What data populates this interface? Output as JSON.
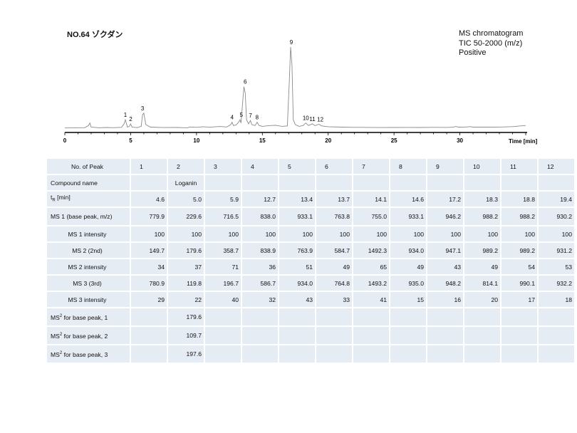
{
  "header": {
    "title": "NO.64 ゾクダン",
    "info": [
      "MS chromatogram",
      "TIC 50-2000 (m/z)",
      "Positive"
    ]
  },
  "chart_data": {
    "type": "line",
    "title": "NO.64 ゾクダン",
    "xlabel": "Time [min]",
    "ylabel": "",
    "xlim": [
      0,
      35
    ],
    "x_ticks": [
      0,
      5,
      10,
      15,
      20,
      25,
      30
    ],
    "grid": false,
    "baseline": 2,
    "points": [
      [
        0,
        2
      ],
      [
        1.5,
        2.2
      ],
      [
        1.8,
        5
      ],
      [
        1.9,
        8
      ],
      [
        2.0,
        3
      ],
      [
        2.6,
        2.2
      ],
      [
        3.2,
        2.6
      ],
      [
        3.6,
        2.3
      ],
      [
        4.3,
        2.8
      ],
      [
        4.5,
        7
      ],
      [
        4.6,
        12
      ],
      [
        4.75,
        3
      ],
      [
        4.9,
        4
      ],
      [
        5.0,
        7
      ],
      [
        5.1,
        3
      ],
      [
        5.5,
        2.4
      ],
      [
        5.8,
        4
      ],
      [
        5.9,
        18
      ],
      [
        6.0,
        20
      ],
      [
        6.15,
        6
      ],
      [
        6.5,
        3
      ],
      [
        7.5,
        2.5
      ],
      [
        8.5,
        2.6
      ],
      [
        9.3,
        2.2
      ],
      [
        9.5,
        3.2
      ],
      [
        10.0,
        2.8
      ],
      [
        10.5,
        3.5
      ],
      [
        11.0,
        2.9
      ],
      [
        11.8,
        3.8
      ],
      [
        12.3,
        3.2
      ],
      [
        12.6,
        6
      ],
      [
        12.7,
        9
      ],
      [
        12.8,
        5
      ],
      [
        13.0,
        5.5
      ],
      [
        13.2,
        9
      ],
      [
        13.3,
        12
      ],
      [
        13.38,
        8
      ],
      [
        13.5,
        32
      ],
      [
        13.6,
        52
      ],
      [
        13.7,
        44
      ],
      [
        13.8,
        12
      ],
      [
        13.95,
        7
      ],
      [
        14.1,
        11
      ],
      [
        14.2,
        6
      ],
      [
        14.45,
        5
      ],
      [
        14.6,
        9
      ],
      [
        14.75,
        5
      ],
      [
        15.0,
        4
      ],
      [
        15.5,
        4.8
      ],
      [
        16.0,
        5.3
      ],
      [
        16.5,
        4
      ],
      [
        16.9,
        4.5
      ],
      [
        17.05,
        60
      ],
      [
        17.15,
        100
      ],
      [
        17.25,
        78
      ],
      [
        17.35,
        12
      ],
      [
        17.5,
        6
      ],
      [
        17.8,
        4
      ],
      [
        18.1,
        5
      ],
      [
        18.3,
        8
      ],
      [
        18.5,
        5
      ],
      [
        18.8,
        7
      ],
      [
        19.0,
        4.8
      ],
      [
        19.3,
        6.5
      ],
      [
        19.5,
        4.5
      ],
      [
        20.0,
        3.5
      ],
      [
        21.0,
        3
      ],
      [
        22.0,
        2.8
      ],
      [
        23.0,
        2.7
      ],
      [
        24.0,
        2.5
      ],
      [
        25.0,
        2.6
      ],
      [
        26.0,
        2.7
      ],
      [
        27.0,
        2.6
      ],
      [
        28.0,
        2.8
      ],
      [
        29.0,
        2.7
      ],
      [
        29.5,
        2.9
      ],
      [
        29.7,
        3.8
      ],
      [
        29.9,
        3
      ],
      [
        30.3,
        2.9
      ],
      [
        30.8,
        3.6
      ],
      [
        31.0,
        3
      ],
      [
        32.0,
        3
      ],
      [
        33.0,
        3.1
      ],
      [
        34.0,
        3.6
      ],
      [
        35.0,
        5
      ]
    ],
    "peaks": [
      {
        "label": "1",
        "x": 4.6,
        "y": 12
      },
      {
        "label": "2",
        "x": 5.0,
        "y": 7
      },
      {
        "label": "3",
        "x": 5.9,
        "y": 20
      },
      {
        "label": "4",
        "x": 12.7,
        "y": 9
      },
      {
        "label": "5",
        "x": 13.4,
        "y": 12
      },
      {
        "label": "6",
        "x": 13.7,
        "y": 52
      },
      {
        "label": "7",
        "x": 14.1,
        "y": 11
      },
      {
        "label": "8",
        "x": 14.6,
        "y": 9
      },
      {
        "label": "9",
        "x": 17.2,
        "y": 100
      },
      {
        "label": "10",
        "x": 18.3,
        "y": 8
      },
      {
        "label": "11",
        "x": 18.8,
        "y": 7
      },
      {
        "label": "12",
        "x": 19.4,
        "y": 6.5
      }
    ],
    "colors": {
      "trace": "#8a8a8a",
      "axis": "#000000"
    }
  },
  "table": {
    "peak_header": "No. of Peak",
    "peak_numbers": [
      "1",
      "2",
      "3",
      "4",
      "5",
      "6",
      "7",
      "8",
      "9",
      "10",
      "11",
      "12"
    ],
    "compound_label": "Compound name",
    "compounds": [
      "",
      "Loganin",
      "",
      "",
      "",
      "",
      "",
      "",
      "",
      "",
      "",
      ""
    ],
    "tr_main": "t",
    "tr_sub": "R",
    "tr_suffix": " [min]",
    "tr": [
      "4.6",
      "5.0",
      "5.9",
      "12.7",
      "13.4",
      "13.7",
      "14.1",
      "14.6",
      "17.2",
      "18.3",
      "18.8",
      "19.4"
    ],
    "rows": [
      {
        "label": "MS 1 (base peak, m/z)",
        "values": [
          "779.9",
          "229.6",
          "716.5",
          "838.0",
          "933.1",
          "763.8",
          "755.0",
          "933.1",
          "946.2",
          "988.2",
          "988.2",
          "930.2"
        ],
        "tall": true
      },
      {
        "label": "MS 1 intensity",
        "values": [
          "100",
          "100",
          "100",
          "100",
          "100",
          "100",
          "100",
          "100",
          "100",
          "100",
          "100",
          "100"
        ],
        "center": true
      },
      {
        "label": "MS 2 (2nd)",
        "values": [
          "149.7",
          "179.6",
          "358.7",
          "838.9",
          "763.9",
          "584.7",
          "1492.3",
          "934.0",
          "947.1",
          "989.2",
          "989.2",
          "931.2"
        ],
        "center": true
      },
      {
        "label": "MS 2 intensity",
        "values": [
          "34",
          "37",
          "71",
          "36",
          "51",
          "49",
          "65",
          "49",
          "43",
          "49",
          "54",
          "53"
        ],
        "center": true
      },
      {
        "label": "MS 3 (3rd)",
        "values": [
          "780.9",
          "119.8",
          "196.7",
          "586.7",
          "934.0",
          "764.8",
          "1493.2",
          "935.0",
          "948.2",
          "814.1",
          "990.1",
          "932.2"
        ],
        "center": true
      },
      {
        "label": "MS 3 intensity",
        "values": [
          "29",
          "22",
          "40",
          "32",
          "43",
          "33",
          "41",
          "15",
          "16",
          "20",
          "17",
          "18"
        ],
        "center": true
      }
    ],
    "ms2_rows": [
      {
        "prefix": "MS",
        "sup": "2",
        "suffix": " for base peak, 1",
        "values": [
          "",
          "179.6",
          "",
          "",
          "",
          "",
          "",
          "",
          "",
          "",
          "",
          ""
        ]
      },
      {
        "prefix": "MS",
        "sup": "2",
        "suffix": " for base peak, 2",
        "values": [
          "",
          "109.7",
          "",
          "",
          "",
          "",
          "",
          "",
          "",
          "",
          "",
          ""
        ]
      },
      {
        "prefix": "MS",
        "sup": "2",
        "suffix": " for base peak, 3",
        "values": [
          "",
          "197.6",
          "",
          "",
          "",
          "",
          "",
          "",
          "",
          "",
          "",
          ""
        ]
      }
    ]
  }
}
